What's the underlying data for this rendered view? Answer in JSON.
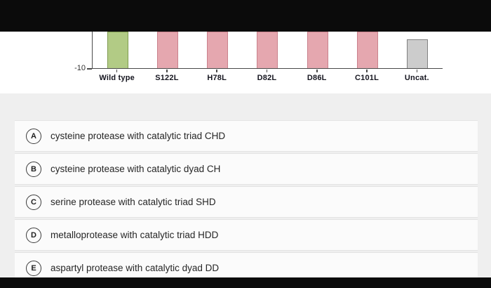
{
  "chart_data": {
    "type": "bar",
    "cropped": true,
    "title": "",
    "categories": [
      "Wild type",
      "S122L",
      "H78L",
      "D82L",
      "D86L",
      "C101L",
      "Uncat."
    ],
    "ytick_labels": [
      "-10"
    ],
    "bar_fills": [
      "#b2cb85",
      "#e5a7af",
      "#e5a7af",
      "#e5a7af",
      "#e5a7af",
      "#e5a7af",
      "#cccccc"
    ],
    "bar_borders": [
      "#7e9a4f",
      "#c9818c",
      "#c9818c",
      "#c9818c",
      "#c9818c",
      "#c9818c",
      "#808080"
    ],
    "legend": []
  },
  "options": [
    {
      "letter": "A",
      "label": "cysteine protease with catalytic triad CHD"
    },
    {
      "letter": "B",
      "label": "cysteine protease with catalytic dyad CH"
    },
    {
      "letter": "C",
      "label": "serine protease with catalytic triad SHD"
    },
    {
      "letter": "D",
      "label": "metalloprotease with catalytic triad HDD"
    },
    {
      "letter": "E",
      "label": "aspartyl protease with catalytic dyad DD"
    }
  ]
}
